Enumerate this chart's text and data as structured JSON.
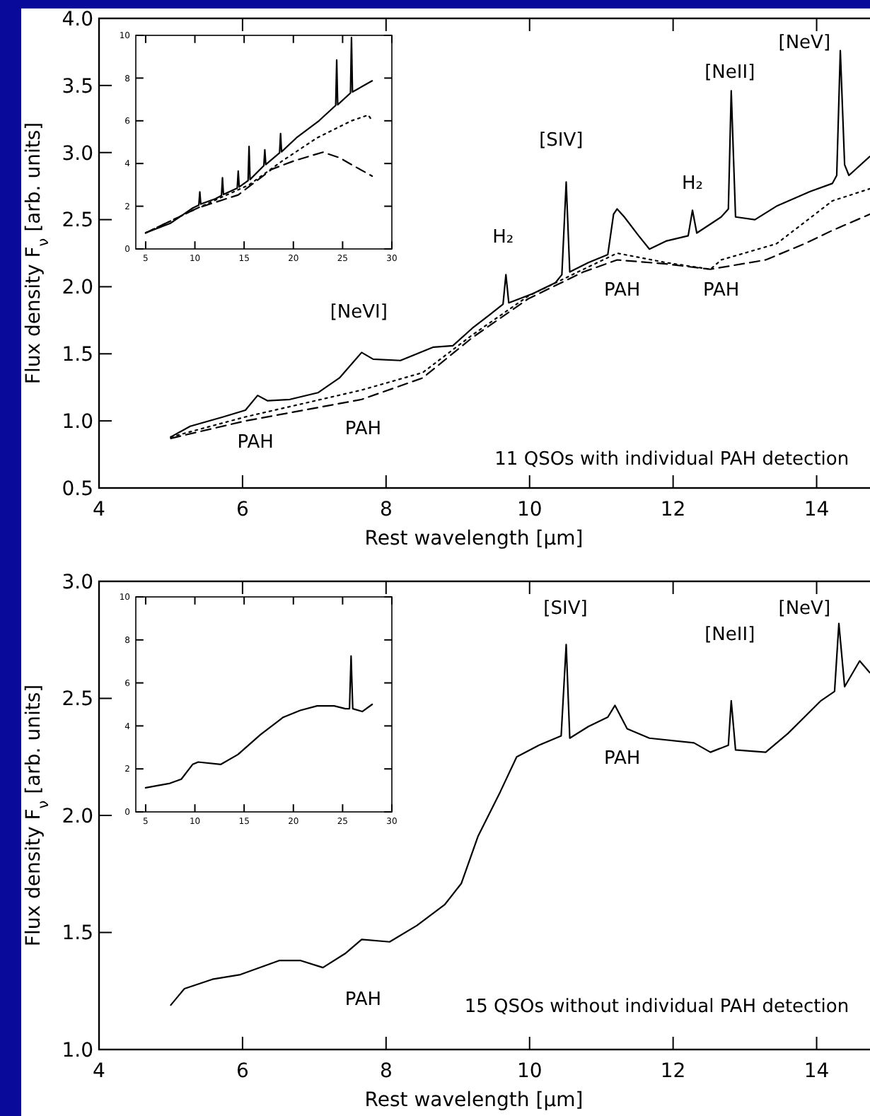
{
  "chart_data": [
    {
      "type": "line",
      "xlabel": "Rest wavelength [μm]",
      "ylabel": "Flux density F$_{ν}$ [arb. units]",
      "xlim": [
        4,
        15
      ],
      "xticks": [
        4,
        6,
        8,
        10,
        12,
        14
      ],
      "ylim": [
        0.5,
        4.0
      ],
      "yticks": [
        {
          "value": 0.5,
          "label": "0.5"
        },
        {
          "value": 1.0,
          "label": "1.0"
        },
        {
          "value": 1.5,
          "label": "1.5"
        },
        {
          "value": 2.0,
          "label": "2.0"
        },
        {
          "value": 2.5,
          "label": "2.5"
        },
        {
          "value": 3.0,
          "label": "3.0"
        },
        {
          "value": 3.5,
          "label": "3.5"
        },
        {
          "value": 4.0,
          "label": "4.0"
        }
      ],
      "series": [
        {
          "color": "#000000",
          "line_style": "solid",
          "x": [
            5.0,
            5.27,
            5.73,
            6.04,
            6.21,
            6.35,
            6.66,
            7.05,
            7.35,
            7.66,
            7.82,
            8.2,
            8.66,
            8.93,
            9.2,
            9.44,
            9.63,
            9.67,
            9.71,
            10.05,
            10.36,
            10.45,
            10.51,
            10.56,
            10.82,
            11.09,
            11.17,
            11.22,
            11.32,
            11.52,
            11.67,
            11.9,
            12.21,
            12.27,
            12.33,
            12.67,
            12.77,
            12.81,
            12.87,
            13.14,
            13.44,
            13.91,
            14.22,
            14.28,
            14.33,
            14.39,
            14.45,
            14.74
          ],
          "values": [
            0.88,
            0.96,
            1.03,
            1.08,
            1.19,
            1.15,
            1.16,
            1.21,
            1.32,
            1.51,
            1.46,
            1.45,
            1.55,
            1.56,
            1.69,
            1.79,
            1.87,
            2.09,
            1.88,
            1.95,
            2.03,
            2.09,
            2.78,
            2.11,
            2.18,
            2.24,
            2.54,
            2.58,
            2.52,
            2.38,
            2.28,
            2.34,
            2.38,
            2.57,
            2.4,
            2.52,
            2.58,
            3.46,
            2.52,
            2.5,
            2.6,
            2.71,
            2.77,
            2.83,
            3.76,
            2.91,
            2.83,
            2.97
          ]
        },
        {
          "color": "#000000",
          "line_style": "dotted",
          "x": [
            5.0,
            6.04,
            7.66,
            8.51,
            9.2,
            9.98,
            10.75,
            11.22,
            11.9,
            12.52,
            12.67,
            13.44,
            14.22,
            14.74
          ],
          "values": [
            0.88,
            1.03,
            1.23,
            1.36,
            1.64,
            1.93,
            2.13,
            2.25,
            2.18,
            2.13,
            2.2,
            2.32,
            2.64,
            2.73
          ]
        },
        {
          "color": "#000000",
          "line_style": "dashed",
          "x": [
            5.0,
            6.04,
            7.66,
            8.51,
            9.2,
            9.98,
            10.75,
            11.22,
            11.9,
            12.52,
            13.29,
            13.83,
            14.22,
            14.74
          ],
          "values": [
            0.87,
            1.0,
            1.16,
            1.32,
            1.62,
            1.91,
            2.11,
            2.2,
            2.17,
            2.13,
            2.2,
            2.32,
            2.42,
            2.54
          ]
        }
      ],
      "annotations": [
        "[NeVI]",
        "PAH",
        "PAH",
        "H₂",
        "[SIV]",
        "PAH",
        "PAH",
        "H₂",
        "[NeII]",
        "[NeV]",
        "11 QSOs with individual PAH detection"
      ]
    },
    {
      "type": "line",
      "xlim": [
        4,
        30
      ],
      "xticks": [
        5,
        10,
        15,
        20,
        25,
        30
      ],
      "ylim": [
        0,
        10
      ],
      "yticks": [
        0,
        2,
        4,
        6,
        8,
        10
      ],
      "series": [
        {
          "color": "#000000",
          "line_style": "solid",
          "x": [
            5,
            7.5,
            9.8,
            10.4,
            10.5,
            10.6,
            12.1,
            12.7,
            12.8,
            12.9,
            14.3,
            14.4,
            14.5,
            15.4,
            15.5,
            15.6,
            17.0,
            17.1,
            17.2,
            18.6,
            18.7,
            18.8,
            20.3,
            22.6,
            24.3,
            24.4,
            24.5,
            25.8,
            25.9,
            26.0,
            28.0
          ],
          "values": [
            0.75,
            1.2,
            1.92,
            2.05,
            2.67,
            2.1,
            2.35,
            2.5,
            3.33,
            2.55,
            2.85,
            3.65,
            2.9,
            3.2,
            4.8,
            3.25,
            3.9,
            4.64,
            3.95,
            4.5,
            5.4,
            4.55,
            5.2,
            6.0,
            6.72,
            8.85,
            6.75,
            7.3,
            9.9,
            7.35,
            7.87
          ]
        },
        {
          "color": "#000000",
          "line_style": "dotted",
          "x": [
            5,
            10.3,
            15.5,
            18.9,
            22.4,
            25.9,
            27.6,
            28.0
          ],
          "values": [
            0.75,
            1.92,
            3.0,
            4.13,
            5.2,
            6.0,
            6.27,
            6.0
          ]
        },
        {
          "color": "#000000",
          "line_style": "dashed",
          "x": [
            5,
            10.3,
            14.4,
            17.8,
            20.1,
            23.0,
            24.7,
            25.9,
            28.0
          ],
          "values": [
            0.75,
            1.92,
            2.53,
            3.73,
            4.13,
            4.53,
            4.27,
            3.95,
            3.41
          ]
        }
      ]
    },
    {
      "type": "line",
      "xlabel": "Rest wavelength [μm]",
      "ylabel": "Flux density F$_{ν}$ [arb. units]",
      "xlim": [
        4,
        15
      ],
      "xticks": [
        4,
        6,
        8,
        10,
        12,
        14
      ],
      "ylim": [
        1.0,
        3.0
      ],
      "yticks": [
        {
          "value": 1.0,
          "label": "1.0"
        },
        {
          "value": 1.5,
          "label": "1.5"
        },
        {
          "value": 2.0,
          "label": "2.0"
        },
        {
          "value": 2.5,
          "label": "2.5"
        },
        {
          "value": 3.0,
          "label": "3.0"
        }
      ],
      "series": [
        {
          "color": "#000000",
          "line_style": "solid",
          "x": [
            5.0,
            5.19,
            5.58,
            5.97,
            6.51,
            6.81,
            7.12,
            7.43,
            7.66,
            8.05,
            8.43,
            8.82,
            9.05,
            9.28,
            9.59,
            9.82,
            10.13,
            10.44,
            10.51,
            10.56,
            10.82,
            11.09,
            11.19,
            11.36,
            11.67,
            12.29,
            12.52,
            12.77,
            12.81,
            12.87,
            13.29,
            13.6,
            14.06,
            14.25,
            14.31,
            14.39,
            14.6,
            14.74
          ],
          "values": [
            1.19,
            1.26,
            1.3,
            1.32,
            1.38,
            1.38,
            1.35,
            1.41,
            1.47,
            1.46,
            1.53,
            1.62,
            1.71,
            1.91,
            2.1,
            2.25,
            2.3,
            2.34,
            2.73,
            2.33,
            2.38,
            2.42,
            2.47,
            2.37,
            2.33,
            2.31,
            2.27,
            2.3,
            2.49,
            2.28,
            2.27,
            2.35,
            2.49,
            2.53,
            2.82,
            2.55,
            2.66,
            2.61
          ]
        }
      ],
      "annotations": [
        "[SIV]",
        "[NeII]",
        "[NeV]",
        "PAH",
        "PAH",
        "15 QSOs without individual PAH detection"
      ]
    },
    {
      "type": "line",
      "xlim": [
        4,
        30
      ],
      "xticks": [
        5,
        10,
        15,
        20,
        25,
        30
      ],
      "ylim": [
        0,
        10
      ],
      "yticks": [
        0,
        2,
        4,
        6,
        8,
        10
      ],
      "series": [
        {
          "color": "#000000",
          "line_style": "solid",
          "x": [
            5,
            7.47,
            8.62,
            9.77,
            10.34,
            12.64,
            14.37,
            16.67,
            18.97,
            20.69,
            22.41,
            24.14,
            25.29,
            25.7,
            25.86,
            26.03,
            27.0,
            28.0
          ],
          "values": [
            1.12,
            1.33,
            1.52,
            2.21,
            2.32,
            2.21,
            2.67,
            3.6,
            4.4,
            4.72,
            4.93,
            4.93,
            4.8,
            4.8,
            7.25,
            4.8,
            4.67,
            5.0
          ]
        }
      ]
    }
  ]
}
